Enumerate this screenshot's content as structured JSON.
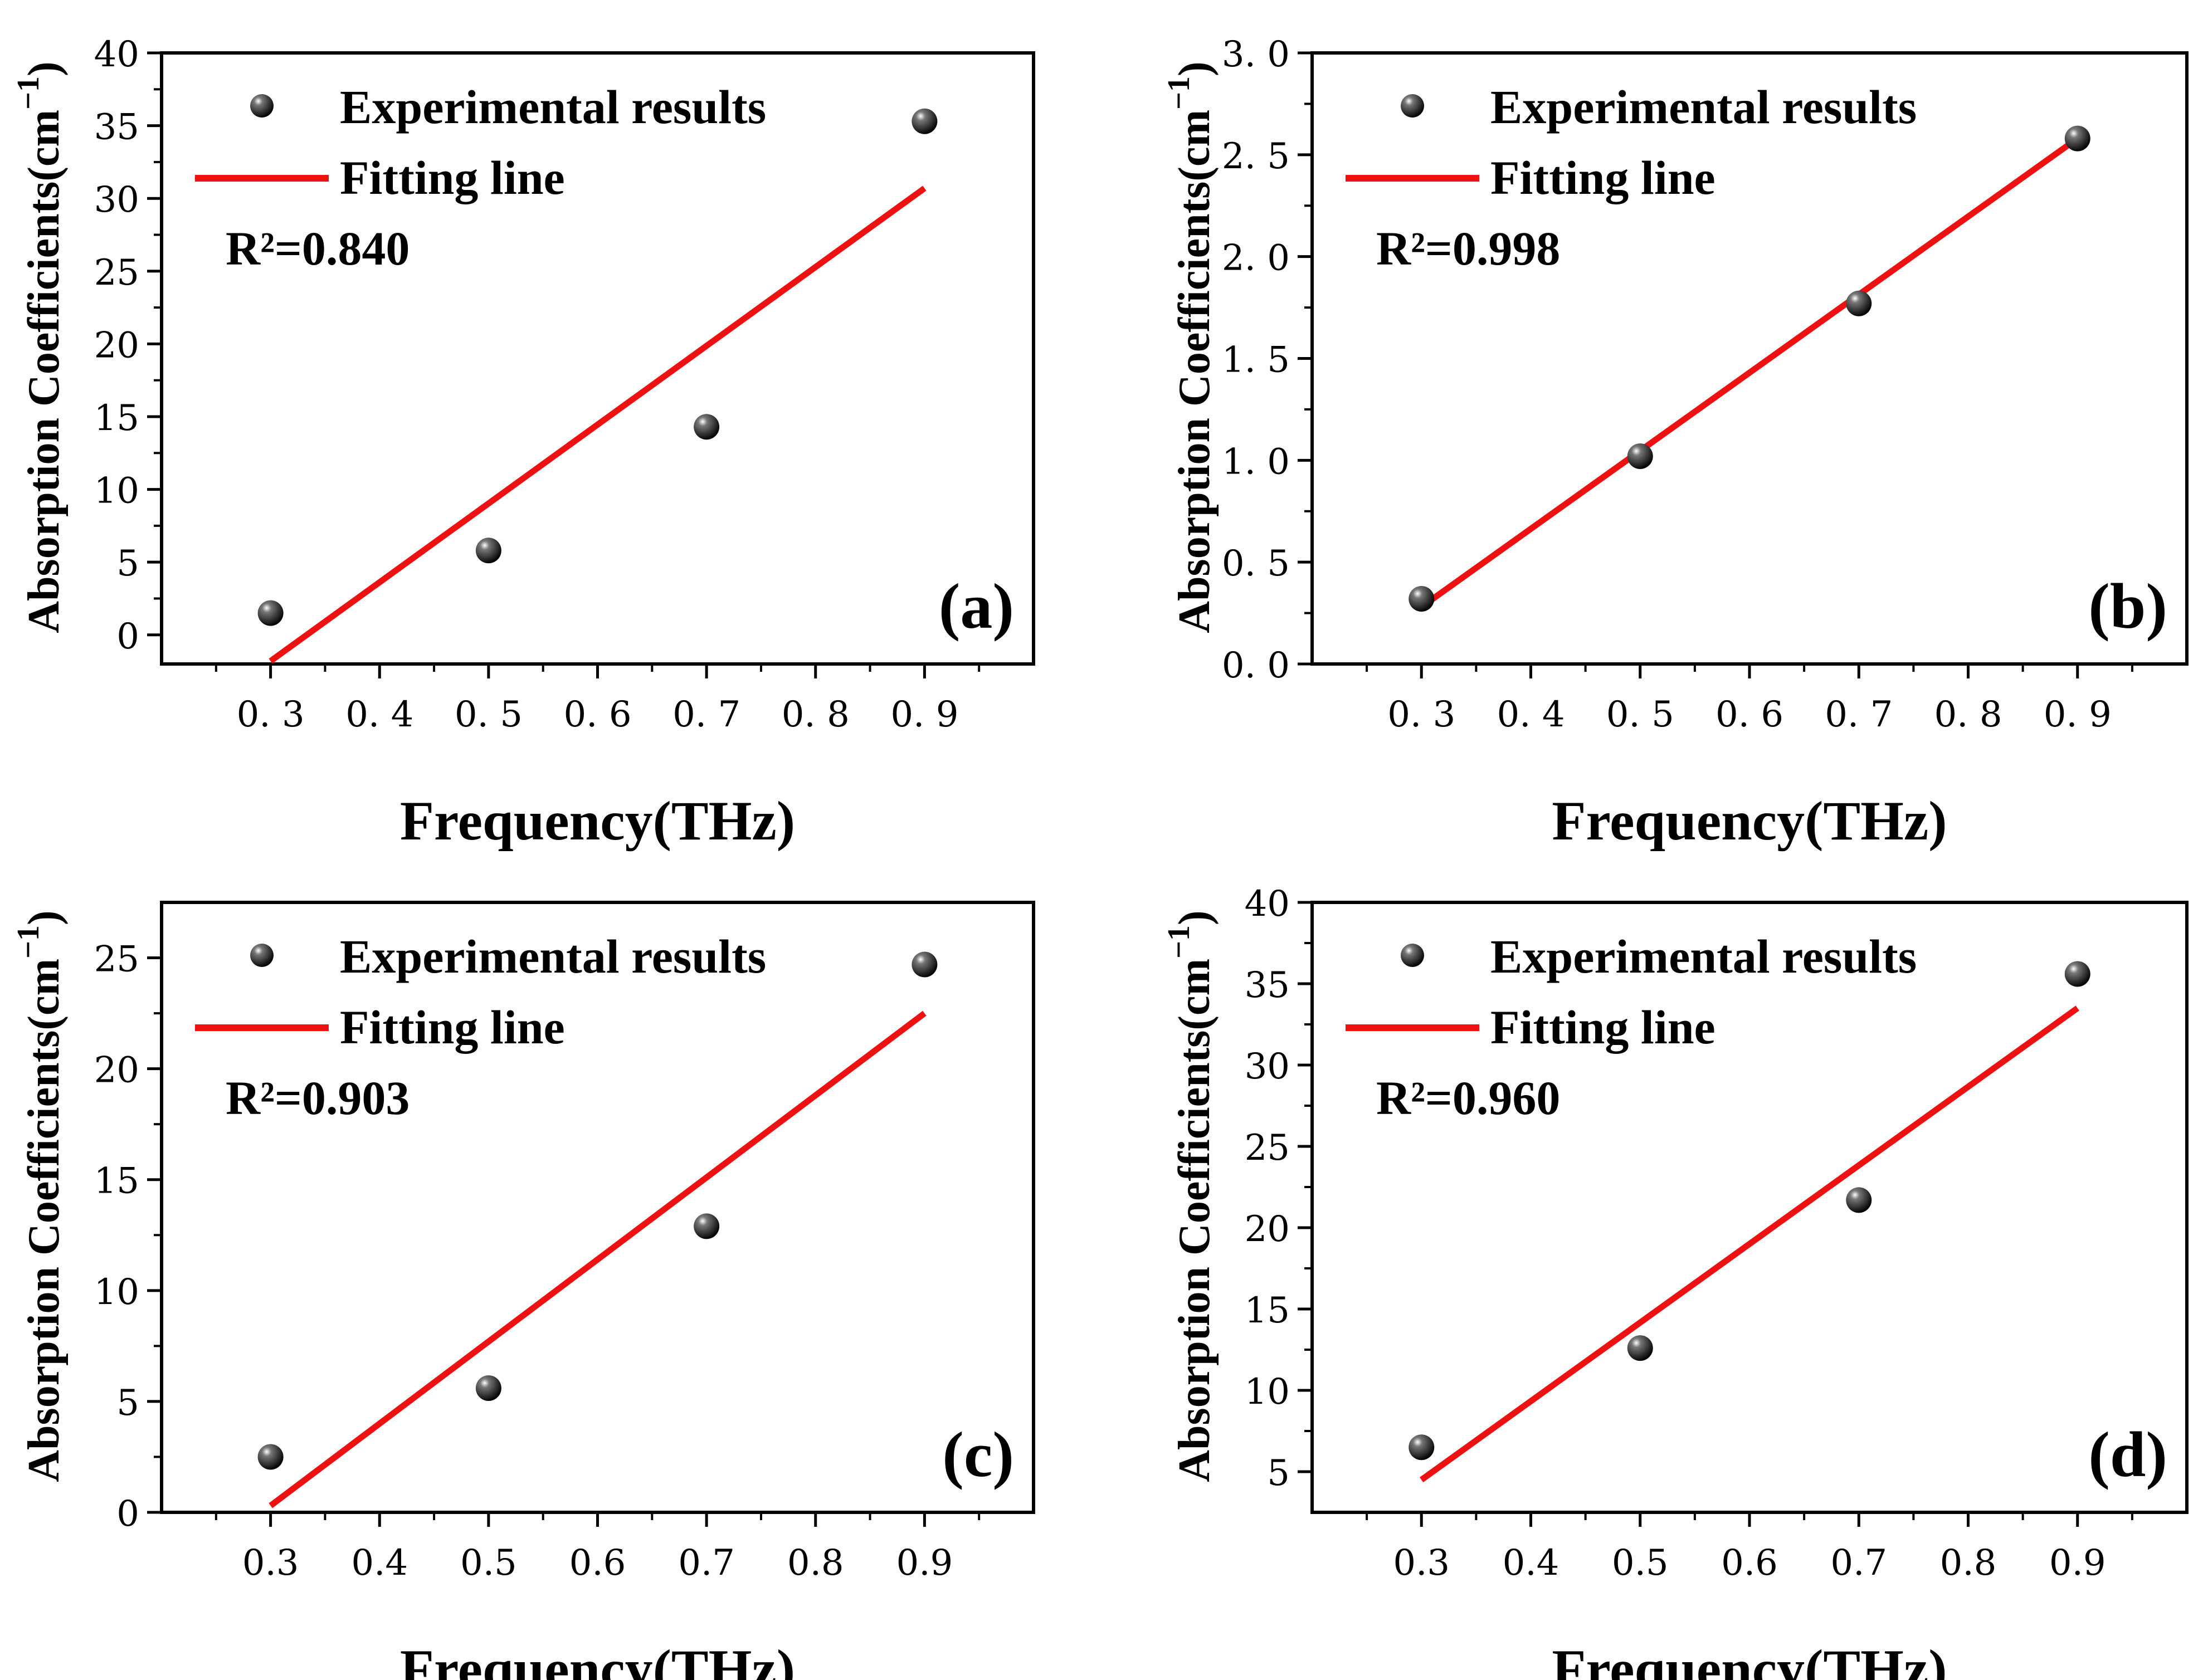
{
  "figure": {
    "legend_marker_label": "Experimental results",
    "legend_line_label": "Fitting line",
    "xlabel": "Frequency(THz)",
    "ylabel_main": "Absorption Coefficients(cm",
    "ylabel_sup": "−1",
    "ylabel_close": ")",
    "fit_color": "#ee1111",
    "marker_color": "#111111"
  },
  "chart_data": [
    {
      "type": "scatter",
      "panel": "(a)",
      "r2": "R²=0.840",
      "x": [
        0.3,
        0.5,
        0.7,
        0.9
      ],
      "values": [
        1.5,
        5.8,
        14.3,
        35.3
      ],
      "fit": {
        "x": [
          0.3,
          0.9
        ],
        "y": [
          -1.8,
          30.7
        ]
      },
      "xlim": [
        0.2,
        1.0
      ],
      "ylim": [
        -2,
        40
      ],
      "xticks": [
        0.3,
        0.4,
        0.5,
        0.6,
        0.7,
        0.8,
        0.9
      ],
      "xtick_labels": [
        "0. 3",
        "0. 4",
        "0. 5",
        "0. 6",
        "0. 7",
        "0. 8",
        "0. 9"
      ],
      "yticks": [
        0,
        5,
        10,
        15,
        20,
        25,
        30,
        35,
        40
      ],
      "ytick_labels": [
        "0",
        "5",
        "10",
        "15",
        "20",
        "25",
        "30",
        "35",
        "40"
      ],
      "xlabel": "Frequency(THz)",
      "ylabel": "Absorption Coefficients(cm−1)"
    },
    {
      "type": "scatter",
      "panel": "(b)",
      "r2": "R²=0.998",
      "x": [
        0.3,
        0.5,
        0.7,
        0.9
      ],
      "values": [
        0.32,
        1.02,
        1.77,
        2.58
      ],
      "fit": {
        "x": [
          0.3,
          0.9
        ],
        "y": [
          0.28,
          2.58
        ]
      },
      "xlim": [
        0.2,
        1.0
      ],
      "ylim": [
        0,
        3.0
      ],
      "xticks": [
        0.3,
        0.4,
        0.5,
        0.6,
        0.7,
        0.8,
        0.9
      ],
      "xtick_labels": [
        "0. 3",
        "0. 4",
        "0. 5",
        "0. 6",
        "0. 7",
        "0. 8",
        "0. 9"
      ],
      "yticks": [
        0,
        0.5,
        1.0,
        1.5,
        2.0,
        2.5,
        3.0
      ],
      "ytick_labels": [
        "0. 0",
        "0. 5",
        "1. 0",
        "1. 5",
        "2. 0",
        "2. 5",
        "3. 0"
      ],
      "xlabel": "Frequency(THz)",
      "ylabel": "Absorption Coefficients(cm−1)"
    },
    {
      "type": "scatter",
      "panel": "(c)",
      "r2": "R²=0.903",
      "x": [
        0.3,
        0.5,
        0.7,
        0.9
      ],
      "values": [
        2.5,
        5.6,
        12.9,
        24.7
      ],
      "fit": {
        "x": [
          0.3,
          0.9
        ],
        "y": [
          0.3,
          22.5
        ]
      },
      "xlim": [
        0.2,
        1.0
      ],
      "ylim": [
        0,
        27.5
      ],
      "xticks": [
        0.3,
        0.4,
        0.5,
        0.6,
        0.7,
        0.8,
        0.9
      ],
      "xtick_labels": [
        "0.3",
        "0.4",
        "0.5",
        "0.6",
        "0.7",
        "0.8",
        "0.9"
      ],
      "yticks": [
        0,
        5,
        10,
        15,
        20,
        25
      ],
      "ytick_labels": [
        "0",
        "5",
        "10",
        "15",
        "20",
        "25"
      ],
      "xlabel": "Frequency(THz)",
      "ylabel": "Absorption Coefficients(cm−1)"
    },
    {
      "type": "scatter",
      "panel": "(d)",
      "r2": "R²=0.960",
      "x": [
        0.3,
        0.5,
        0.7,
        0.9
      ],
      "values": [
        6.5,
        12.6,
        21.7,
        35.6
      ],
      "fit": {
        "x": [
          0.3,
          0.9
        ],
        "y": [
          4.5,
          33.5
        ]
      },
      "xlim": [
        0.2,
        1.0
      ],
      "ylim": [
        2.5,
        40
      ],
      "xticks": [
        0.3,
        0.4,
        0.5,
        0.6,
        0.7,
        0.8,
        0.9
      ],
      "xtick_labels": [
        "0.3",
        "0.4",
        "0.5",
        "0.6",
        "0.7",
        "0.8",
        "0.9"
      ],
      "yticks": [
        5,
        10,
        15,
        20,
        25,
        30,
        35,
        40
      ],
      "ytick_labels": [
        "5",
        "10",
        "15",
        "20",
        "25",
        "30",
        "35",
        "40"
      ],
      "xlabel": "Frequency(THz)",
      "ylabel": "Absorption Coefficients(cm−1)"
    }
  ]
}
